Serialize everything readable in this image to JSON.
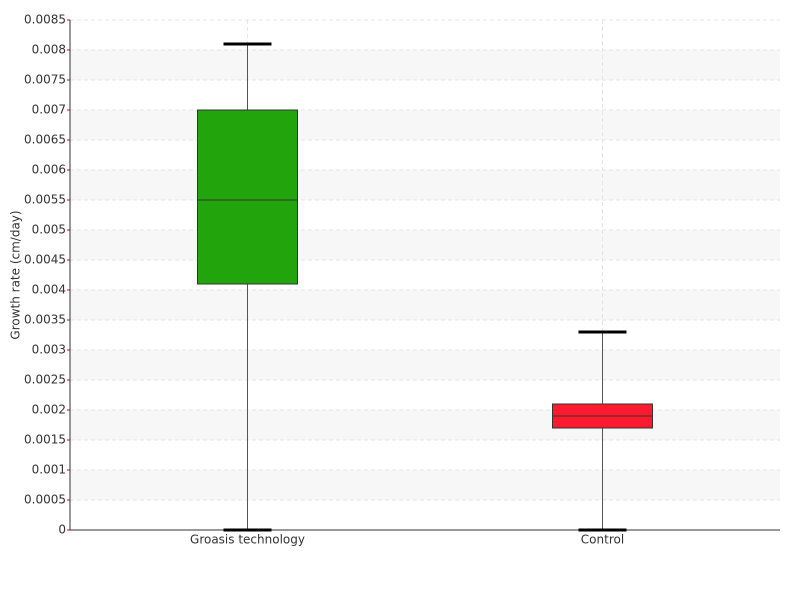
{
  "chart_data": {
    "type": "box",
    "y_label": "Growth rate (cm/day)",
    "categories": [
      "Groasis technology",
      "Control"
    ],
    "colors": [
      "#22a50c",
      "#ff1a2d"
    ],
    "min": [
      0,
      0
    ],
    "q1": [
      0.0041,
      0.0017
    ],
    "median": [
      0.0055,
      0.0019
    ],
    "q3": [
      0.007,
      0.0021
    ],
    "max": [
      0.0081,
      0.0033
    ],
    "ylim": [
      0,
      0.0085
    ],
    "yticks": [
      0,
      0.0005,
      0.001,
      0.0015,
      0.002,
      0.0025,
      0.003,
      0.0035,
      0.004,
      0.0045,
      0.005,
      0.0055,
      0.006,
      0.0065,
      0.007,
      0.0075,
      0.008,
      0.0085
    ],
    "grid": true
  }
}
